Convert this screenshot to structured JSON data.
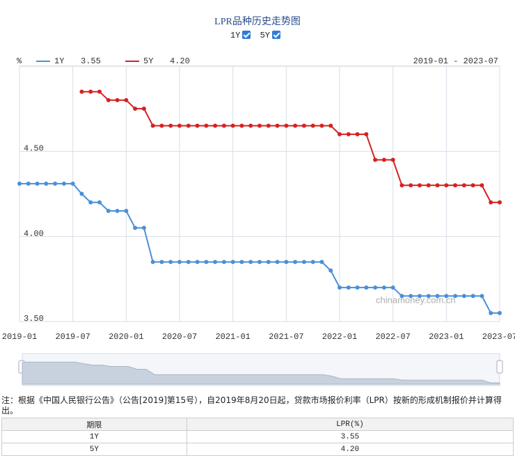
{
  "header": {
    "title": "LPR品种历史走势图",
    "toggles": [
      "1Y",
      "5Y"
    ]
  },
  "chart_data": {
    "type": "line",
    "unit": "%",
    "range_label": "2019-01 - 2023-07",
    "watermark": "chinamoney.com.cn",
    "x": [
      "2019-01",
      "2019-02",
      "2019-03",
      "2019-04",
      "2019-05",
      "2019-06",
      "2019-07",
      "2019-08",
      "2019-09",
      "2019-10",
      "2019-11",
      "2019-12",
      "2020-01",
      "2020-02",
      "2020-03",
      "2020-04",
      "2020-05",
      "2020-06",
      "2020-07",
      "2020-08",
      "2020-09",
      "2020-10",
      "2020-11",
      "2020-12",
      "2021-01",
      "2021-02",
      "2021-03",
      "2021-04",
      "2021-05",
      "2021-06",
      "2021-07",
      "2021-08",
      "2021-09",
      "2021-10",
      "2021-11",
      "2021-12",
      "2022-01",
      "2022-02",
      "2022-03",
      "2022-04",
      "2022-05",
      "2022-06",
      "2022-07",
      "2022-08",
      "2022-09",
      "2022-10",
      "2022-11",
      "2022-12",
      "2023-01",
      "2023-02",
      "2023-03",
      "2023-04",
      "2023-05",
      "2023-06",
      "2023-07"
    ],
    "xticks": [
      "2019-01",
      "2019-07",
      "2020-01",
      "2020-07",
      "2021-01",
      "2021-07",
      "2022-01",
      "2022-07",
      "2023-01",
      "2023-07"
    ],
    "ylim": [
      3.5,
      5.0
    ],
    "yticks": [
      {
        "value": 3.5,
        "label": "3.50"
      },
      {
        "value": 4.0,
        "label": "4.00"
      },
      {
        "value": 4.5,
        "label": "4.50"
      }
    ],
    "grid": true,
    "series": [
      {
        "name": "1Y",
        "color": "#4a90d6",
        "legend_value": "3.55",
        "values": [
          4.31,
          4.31,
          4.31,
          4.31,
          4.31,
          4.31,
          4.31,
          4.25,
          4.2,
          4.2,
          4.15,
          4.15,
          4.15,
          4.05,
          4.05,
          3.85,
          3.85,
          3.85,
          3.85,
          3.85,
          3.85,
          3.85,
          3.85,
          3.85,
          3.85,
          3.85,
          3.85,
          3.85,
          3.85,
          3.85,
          3.85,
          3.85,
          3.85,
          3.85,
          3.85,
          3.8,
          3.7,
          3.7,
          3.7,
          3.7,
          3.7,
          3.7,
          3.7,
          3.65,
          3.65,
          3.65,
          3.65,
          3.65,
          3.65,
          3.65,
          3.65,
          3.65,
          3.65,
          3.55,
          3.55
        ]
      },
      {
        "name": "5Y",
        "color": "#d42222",
        "legend_value": "4.20",
        "values": [
          null,
          null,
          null,
          null,
          null,
          null,
          null,
          4.85,
          4.85,
          4.85,
          4.8,
          4.8,
          4.8,
          4.75,
          4.75,
          4.65,
          4.65,
          4.65,
          4.65,
          4.65,
          4.65,
          4.65,
          4.65,
          4.65,
          4.65,
          4.65,
          4.65,
          4.65,
          4.65,
          4.65,
          4.65,
          4.65,
          4.65,
          4.65,
          4.65,
          4.65,
          4.6,
          4.6,
          4.6,
          4.6,
          4.45,
          4.45,
          4.45,
          4.3,
          4.3,
          4.3,
          4.3,
          4.3,
          4.3,
          4.3,
          4.3,
          4.3,
          4.3,
          4.2,
          4.2
        ]
      }
    ]
  },
  "note": "注：根据《中国人民银行公告》（公告[2019]第15号），自2019年8月20日起，贷款市场报价利率（LPR）按新的形成机制报价并计算得出。",
  "table": {
    "header": [
      "期限",
      "LPR(%)"
    ],
    "rows": [
      [
        "1Y",
        "3.55"
      ],
      [
        "5Y",
        "4.20"
      ]
    ]
  }
}
